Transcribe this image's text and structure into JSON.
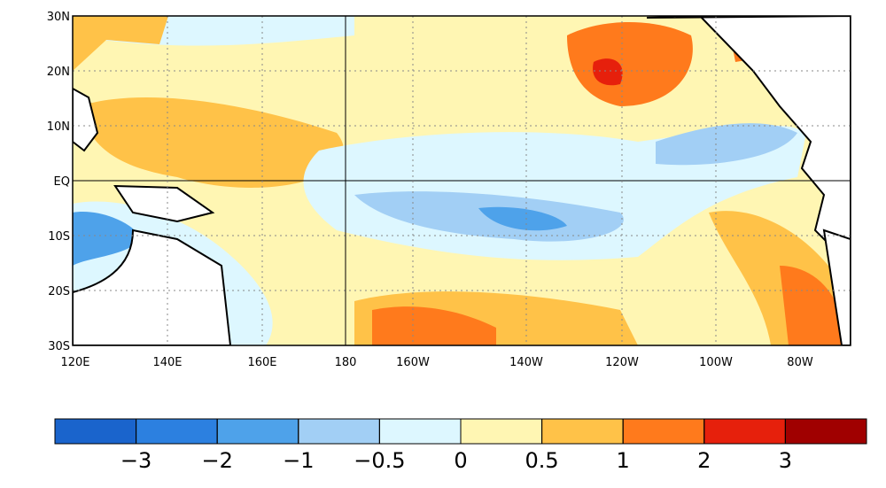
{
  "map": {
    "lat_labels": [
      "30N",
      "20N",
      "10N",
      "EQ",
      "10S",
      "20S",
      "30S"
    ],
    "lon_labels": [
      "120E",
      "140E",
      "160E",
      "180",
      "160W",
      "140W",
      "120W",
      "100W",
      "80W"
    ],
    "colorbar": {
      "colors": [
        "#1a64cc",
        "#2c80e0",
        "#4ea2ea",
        "#a2cff5",
        "#ddf7ff",
        "#fff6b3",
        "#ffc248",
        "#ff7a1c",
        "#e6200c",
        "#a00000"
      ],
      "ticks": [
        {
          "value": -3,
          "label": "−3"
        },
        {
          "value": -2,
          "label": "−2"
        },
        {
          "value": -1,
          "label": "−1"
        },
        {
          "value": -0.5,
          "label": "−0.5"
        },
        0,
        0.5,
        1,
        2,
        3
      ]
    }
  }
}
